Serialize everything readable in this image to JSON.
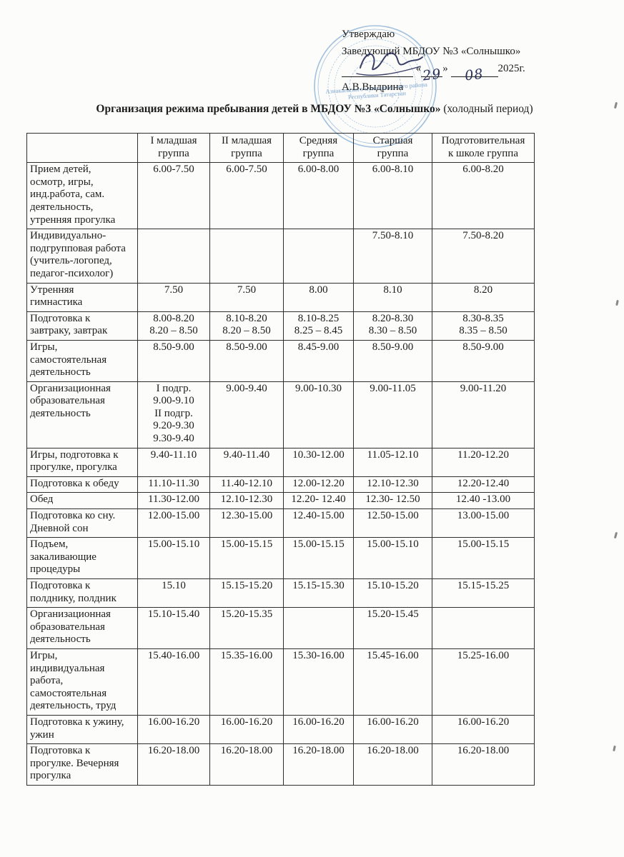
{
  "approval": {
    "approve_word": "Утверждаю",
    "position_line": "Заведующий МБДОУ №3 «Солнышко»",
    "quote_open": "«",
    "date_day": "29",
    "quote_close": "»",
    "date_month": "08",
    "date_year": "2025г.",
    "signatory_name": "А.В.Выдрина"
  },
  "stamp": {
    "color": "#5b93c8",
    "center_lines": "Азнакаевского\nмуниципального района\nРеспублики Татарстан"
  },
  "title": {
    "bold_part": "Организация режима пребывания детей в МБДОУ №3 «Солнышко» ",
    "normal_part": "(холодный период)"
  },
  "table": {
    "columns": [
      "",
      "I младшая\nгруппа",
      "II младшая\nгруппа",
      "Средняя\nгруппа",
      "Старшая\nгруппа",
      "Подготовительная\nк школе группа"
    ],
    "rows": [
      {
        "activity": "Прием детей,\nосмотр, игры,\nинд.работа, сам.\nдеятельность,\nутренняя прогулка",
        "times": [
          "6.00-7.50",
          "6.00-7.50",
          "6.00-8.00",
          "6.00-8.10",
          "6.00-8.20"
        ]
      },
      {
        "activity": "Индивидуально-\nподгрупповая работа\n(учитель-логопед,\nпедагог-психолог)",
        "times": [
          "",
          "",
          "",
          "7.50-8.10",
          "7.50-8.20"
        ]
      },
      {
        "activity": "Утренняя\nгимнастика",
        "times": [
          "7.50",
          "7.50",
          "8.00",
          "8.10",
          "8.20"
        ]
      },
      {
        "activity": "Подготовка к\nзавтраку, завтрак",
        "times": [
          "8.00-8.20\n8.20 – 8.50",
          "8.10-8.20\n8.20 – 8.50",
          "8.10-8.25\n8.25 – 8.45",
          "8.20-8.30\n8.30 – 8.50",
          "8.30-8.35\n8.35 – 8.50"
        ]
      },
      {
        "activity": "Игры,\nсамостоятельная\nдеятельность",
        "times": [
          "8.50-9.00",
          "8.50-9.00",
          "8.45-9.00",
          "8.50-9.00",
          "8.50-9.00"
        ]
      },
      {
        "activity": "Организационная\nобразовательная\nдеятельность",
        "times": [
          "I подгр.\n9.00-9.10\nII подгр.\n9.20-9.30\n9.30-9.40",
          "9.00-9.40",
          "9.00-10.30",
          "9.00-11.05",
          "9.00-11.20"
        ]
      },
      {
        "activity": "Игры, подготовка к\nпрогулке, прогулка",
        "times": [
          "9.40-11.10",
          "9.40-11.40",
          "10.30-12.00",
          "11.05-12.10",
          "11.20-12.20"
        ]
      },
      {
        "activity": "Подготовка к обеду",
        "times": [
          "11.10-11.30",
          "11.40-12.10",
          "12.00-12.20",
          "12.10-12.30",
          "12.20-12.40"
        ]
      },
      {
        "activity": "Обед",
        "times": [
          "11.30-12.00",
          "12.10-12.30",
          "12.20- 12.40",
          "12.30- 12.50",
          "12.40 -13.00"
        ]
      },
      {
        "activity": "Подготовка ко сну.\nДневной сон",
        "times": [
          "12.00-15.00",
          "12.30-15.00",
          "12.40-15.00",
          "12.50-15.00",
          "13.00-15.00"
        ]
      },
      {
        "activity": "Подъем,\nзакаливающие\nпроцедуры",
        "times": [
          "15.00-15.10",
          "15.00-15.15",
          "15.00-15.15",
          "15.00-15.10",
          "15.00-15.15"
        ]
      },
      {
        "activity": "Подготовка к\nполднику, полдник",
        "times": [
          "15.10",
          "15.15-15.20",
          "15.15-15.30",
          "15.10-15.20",
          "15.15-15.25"
        ]
      },
      {
        "activity": "Организационная\nобразовательная\nдеятельность",
        "times": [
          "15.10-15.40",
          "15.20-15.35",
          "",
          "15.20-15.45",
          ""
        ]
      },
      {
        "activity": "Игры,\nиндивидуальная\nработа,\nсамостоятельная\nдеятельность, труд",
        "times": [
          "15.40-16.00",
          "15.35-16.00",
          "15.30-16.00",
          "15.45-16.00",
          "15.25-16.00"
        ]
      },
      {
        "activity": "Подготовка к ужину,\nужин",
        "times": [
          "16.00-16.20",
          "16.00-16.20",
          "16.00-16.20",
          "16.00-16.20",
          "16.00-16.20"
        ]
      },
      {
        "activity": "Подготовка к\nпрогулке. Вечерняя\nпрогулка",
        "times": [
          "16.20-18.00",
          "16.20-18.00",
          "16.20-18.00",
          "16.20-18.00",
          "16.20-18.00"
        ]
      }
    ]
  }
}
